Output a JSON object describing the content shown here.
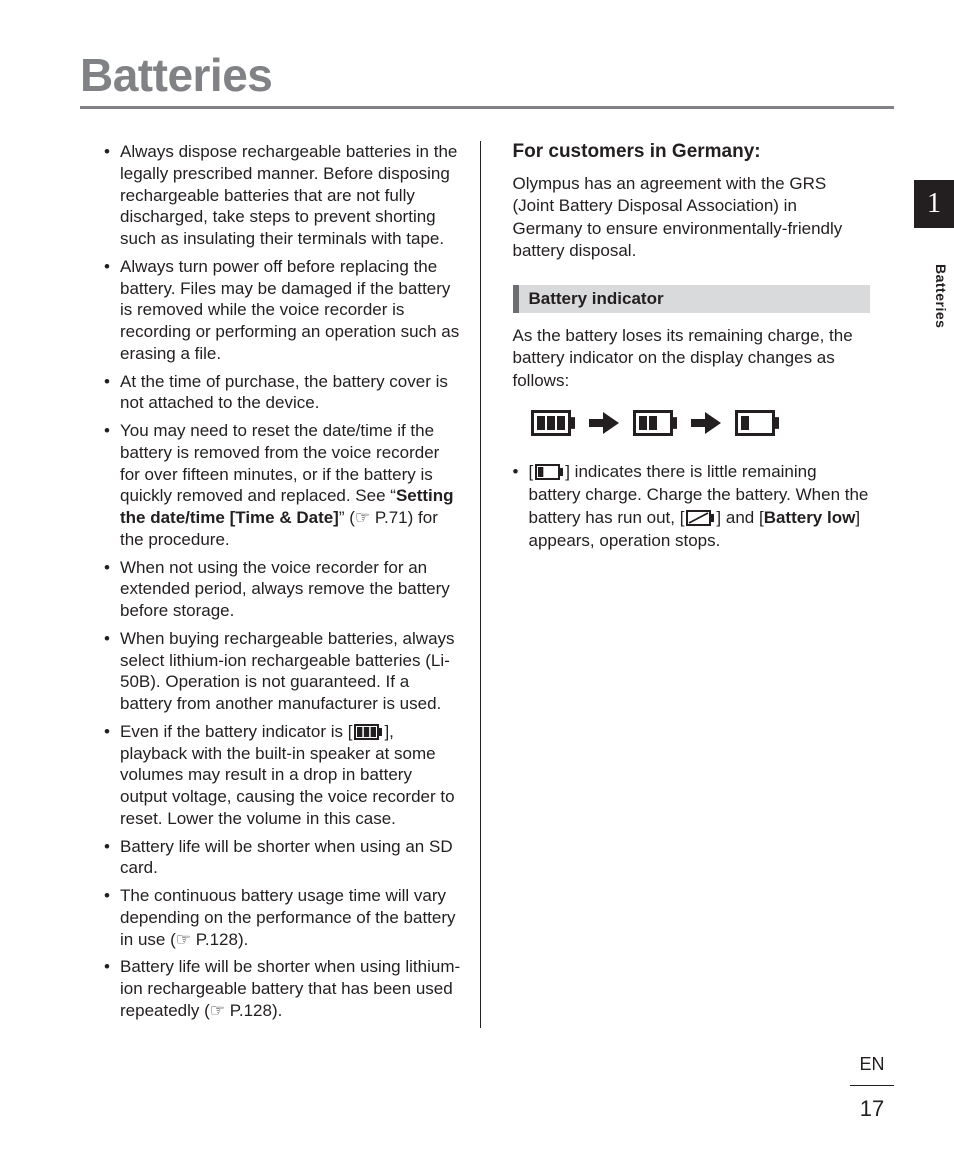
{
  "page": {
    "title": "Batteries",
    "chapter_number": "1",
    "side_label": "Batteries",
    "lang_code": "EN",
    "page_number": "17"
  },
  "left_column": {
    "bullets": [
      {
        "text": "Always dispose rechargeable batteries in the legally prescribed manner. Before disposing rechargeable batteries that are not fully discharged, take steps to prevent shorting such as insulating their terminals with tape."
      },
      {
        "text": "Always turn power off before replacing the battery. Files may be damaged if the battery is removed while the voice recorder is recording or performing an operation such as erasing a file."
      },
      {
        "text": "At the time of purchase, the battery cover is not attached to the device."
      },
      {
        "pre": "You may need to reset the date/time if the battery is removed from the voice recorder for over fifteen minutes, or if the battery is quickly removed and replaced. See “",
        "bold": "Setting the date/time [Time & Date]",
        "post": "” (☞ P.71) for the procedure."
      },
      {
        "text": "When not using the voice recorder for an extended period, always remove the battery before storage."
      },
      {
        "text": "When buying rechargeable batteries, always select lithium-ion rechargeable batteries (Li-50B). Operation is not guaranteed. If a battery from another manufacturer is used."
      },
      {
        "icon_bullet": true,
        "pre": "Even if the battery indicator is [",
        "post": "], playback with the built-in speaker at some volumes may result in a drop in battery output voltage, causing the voice recorder to reset. Lower the volume in this case."
      },
      {
        "text": "Battery life will be shorter when using an SD card."
      },
      {
        "text": "The continuous battery usage time will vary depending on the performance of the battery in use (☞ P.128)."
      },
      {
        "text": "Battery life will be shorter when using lithium-ion rechargeable battery that has been used repeatedly (☞ P.128)."
      }
    ]
  },
  "right_column": {
    "germany_heading": "For customers in Germany:",
    "germany_body": "Olympus has an agreement with the GRS (Joint Battery Disposal Association) in Germany to ensure environmentally-friendly battery disposal.",
    "indicator_heading": "Battery indicator",
    "indicator_body": "As the battery loses its remaining charge, the battery indicator on the display changes as follows:",
    "indicator_bullet": {
      "pre": "[",
      "mid1": "] indicates there is little remaining battery charge. Charge the battery. When the battery has run out, [",
      "mid2": "] and [",
      "bold": "Battery low",
      "post": "] appears, operation stops."
    }
  },
  "colors": {
    "title_gray": "#808285",
    "section_bar_bg": "#d9dadb",
    "section_bar_border": "#6d6e71",
    "text": "#231f20"
  }
}
